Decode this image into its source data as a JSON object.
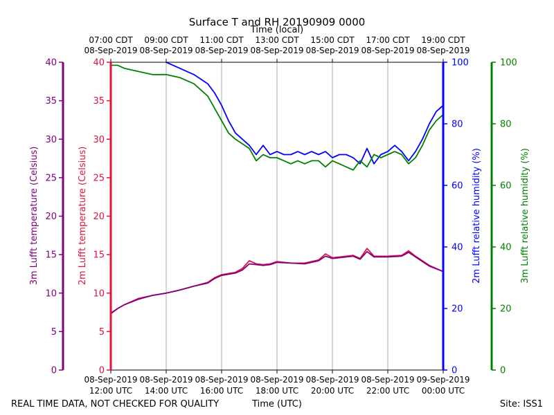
{
  "chart_data": {
    "type": "line",
    "title": "Surface T and RH 20190909 0000",
    "top_axis_title": "Time (local)",
    "xlabel": "Time (UTC)",
    "footer_left": "REAL TIME DATA, NOT CHECKED FOR QUALITY",
    "footer_right": "Site: ISS1",
    "x_range_hours_utc": [
      12,
      24
    ],
    "x_ticks_utc": [
      {
        "hour": 12,
        "date": "08-Sep-2019",
        "time": "12:00 UTC"
      },
      {
        "hour": 14,
        "date": "08-Sep-2019",
        "time": "14:00 UTC"
      },
      {
        "hour": 16,
        "date": "08-Sep-2019",
        "time": "16:00 UTC"
      },
      {
        "hour": 18,
        "date": "08-Sep-2019",
        "time": "18:00 UTC"
      },
      {
        "hour": 20,
        "date": "08-Sep-2019",
        "time": "20:00 UTC"
      },
      {
        "hour": 22,
        "date": "08-Sep-2019",
        "time": "22:00 UTC"
      },
      {
        "hour": 24,
        "date": "09-Sep-2019",
        "time": "00:00 UTC"
      }
    ],
    "x_ticks_local": [
      {
        "hour": 12,
        "time": "07:00 CDT",
        "date": "08-Sep-2019"
      },
      {
        "hour": 14,
        "time": "09:00 CDT",
        "date": "08-Sep-2019"
      },
      {
        "hour": 16,
        "time": "11:00 CDT",
        "date": "08-Sep-2019"
      },
      {
        "hour": 18,
        "time": "13:00 CDT",
        "date": "08-Sep-2019"
      },
      {
        "hour": 20,
        "time": "15:00 CDT",
        "date": "08-Sep-2019"
      },
      {
        "hour": 22,
        "time": "17:00 CDT",
        "date": "08-Sep-2019"
      },
      {
        "hour": 24,
        "time": "19:00 CDT",
        "date": "08-Sep-2019"
      }
    ],
    "axes": {
      "temp3m": {
        "label": "3m Lufft temperature (Celsius)",
        "range": [
          0,
          40
        ],
        "ticks": [
          0,
          5,
          10,
          15,
          20,
          25,
          30,
          35,
          40
        ],
        "color": "#800080"
      },
      "temp2m": {
        "label": "2m Lufft temperature (Celsius)",
        "range": [
          0,
          40
        ],
        "ticks": [
          0,
          5,
          10,
          15,
          20,
          25,
          30,
          35,
          40
        ],
        "color": "#dc143c"
      },
      "rh2m": {
        "label": "2m Lufft relative humidity (%)",
        "range": [
          0,
          100
        ],
        "ticks": [
          0,
          20,
          40,
          60,
          80,
          100
        ],
        "color": "#0000ff"
      },
      "rh3m": {
        "label": "3m Lufft relative humidity (%)",
        "range": [
          0,
          100
        ],
        "ticks": [
          0,
          20,
          40,
          60,
          80,
          100
        ],
        "color": "#008000"
      }
    },
    "series": [
      {
        "name": "2m Lufft temperature",
        "axis": "temp2m",
        "color": "#dc143c",
        "x": [
          12,
          12.25,
          12.5,
          13,
          13.5,
          14,
          14.5,
          15,
          15.5,
          15.75,
          16,
          16.5,
          16.75,
          17,
          17.25,
          17.5,
          17.75,
          18,
          18.5,
          19,
          19.5,
          19.75,
          20,
          20.5,
          20.75,
          21,
          21.25,
          21.5,
          22,
          22.5,
          22.75,
          23,
          23.5,
          24
        ],
        "values": [
          7.3,
          8.0,
          8.5,
          9.3,
          9.7,
          10.0,
          10.4,
          10.9,
          11.4,
          12.0,
          12.4,
          12.7,
          13.2,
          14.2,
          13.8,
          13.7,
          13.8,
          14.1,
          13.9,
          13.9,
          14.3,
          15.1,
          14.6,
          14.8,
          14.9,
          14.5,
          15.8,
          14.8,
          14.8,
          14.9,
          15.5,
          14.8,
          13.6,
          12.8
        ]
      },
      {
        "name": "3m Lufft temperature",
        "axis": "temp3m",
        "color": "#800080",
        "x": [
          12,
          12.25,
          12.5,
          13,
          13.5,
          14,
          14.5,
          15,
          15.5,
          15.75,
          16,
          16.5,
          16.75,
          17,
          17.25,
          17.5,
          17.75,
          18,
          18.5,
          19,
          19.5,
          19.75,
          20,
          20.5,
          20.75,
          21,
          21.25,
          21.5,
          22,
          22.5,
          22.75,
          23,
          23.5,
          24
        ],
        "values": [
          7.4,
          8.0,
          8.5,
          9.2,
          9.7,
          10.0,
          10.4,
          10.9,
          11.3,
          11.9,
          12.3,
          12.6,
          13.0,
          13.8,
          13.7,
          13.6,
          13.7,
          14.0,
          13.9,
          13.8,
          14.2,
          14.8,
          14.5,
          14.7,
          14.8,
          14.4,
          15.4,
          14.7,
          14.7,
          14.8,
          15.3,
          14.7,
          13.5,
          12.8
        ]
      },
      {
        "name": "2m Lufft relative humidity",
        "axis": "rh2m",
        "color": "#0000ff",
        "x": [
          14,
          14.25,
          14.5,
          15,
          15.5,
          15.75,
          16,
          16.25,
          16.5,
          17,
          17.25,
          17.5,
          17.75,
          18,
          18.25,
          18.5,
          18.75,
          19,
          19.25,
          19.5,
          19.75,
          20,
          20.25,
          20.5,
          20.75,
          21,
          21.25,
          21.5,
          21.75,
          22,
          22.25,
          22.5,
          22.75,
          23,
          23.25,
          23.5,
          23.75,
          24
        ],
        "values": [
          100,
          99,
          98,
          96,
          93,
          90,
          86,
          81,
          77,
          73,
          70,
          73,
          70,
          71,
          70,
          70,
          71,
          70,
          71,
          70,
          71,
          69,
          70,
          70,
          69,
          67,
          72,
          67,
          70,
          71,
          73,
          71,
          68,
          71,
          75,
          80,
          84,
          86
        ]
      },
      {
        "name": "3m Lufft relative humidity",
        "axis": "rh3m",
        "color": "#008000",
        "x": [
          12,
          12.25,
          12.5,
          13,
          13.5,
          14,
          14.5,
          15,
          15.5,
          15.75,
          16,
          16.25,
          16.5,
          17,
          17.25,
          17.5,
          17.75,
          18,
          18.25,
          18.5,
          18.75,
          19,
          19.25,
          19.5,
          19.75,
          20,
          20.25,
          20.5,
          20.75,
          21,
          21.25,
          21.5,
          21.75,
          22,
          22.25,
          22.5,
          22.75,
          23,
          23.25,
          23.5,
          23.75,
          24
        ],
        "values": [
          99,
          99,
          98,
          97,
          96,
          96,
          95,
          93,
          89,
          85,
          81,
          77,
          75,
          72,
          68,
          70,
          69,
          69,
          68,
          67,
          68,
          67,
          68,
          68,
          66,
          68,
          67,
          66,
          65,
          68,
          66,
          70,
          69,
          70,
          71,
          70,
          67,
          69,
          73,
          78,
          81,
          83
        ]
      }
    ]
  }
}
